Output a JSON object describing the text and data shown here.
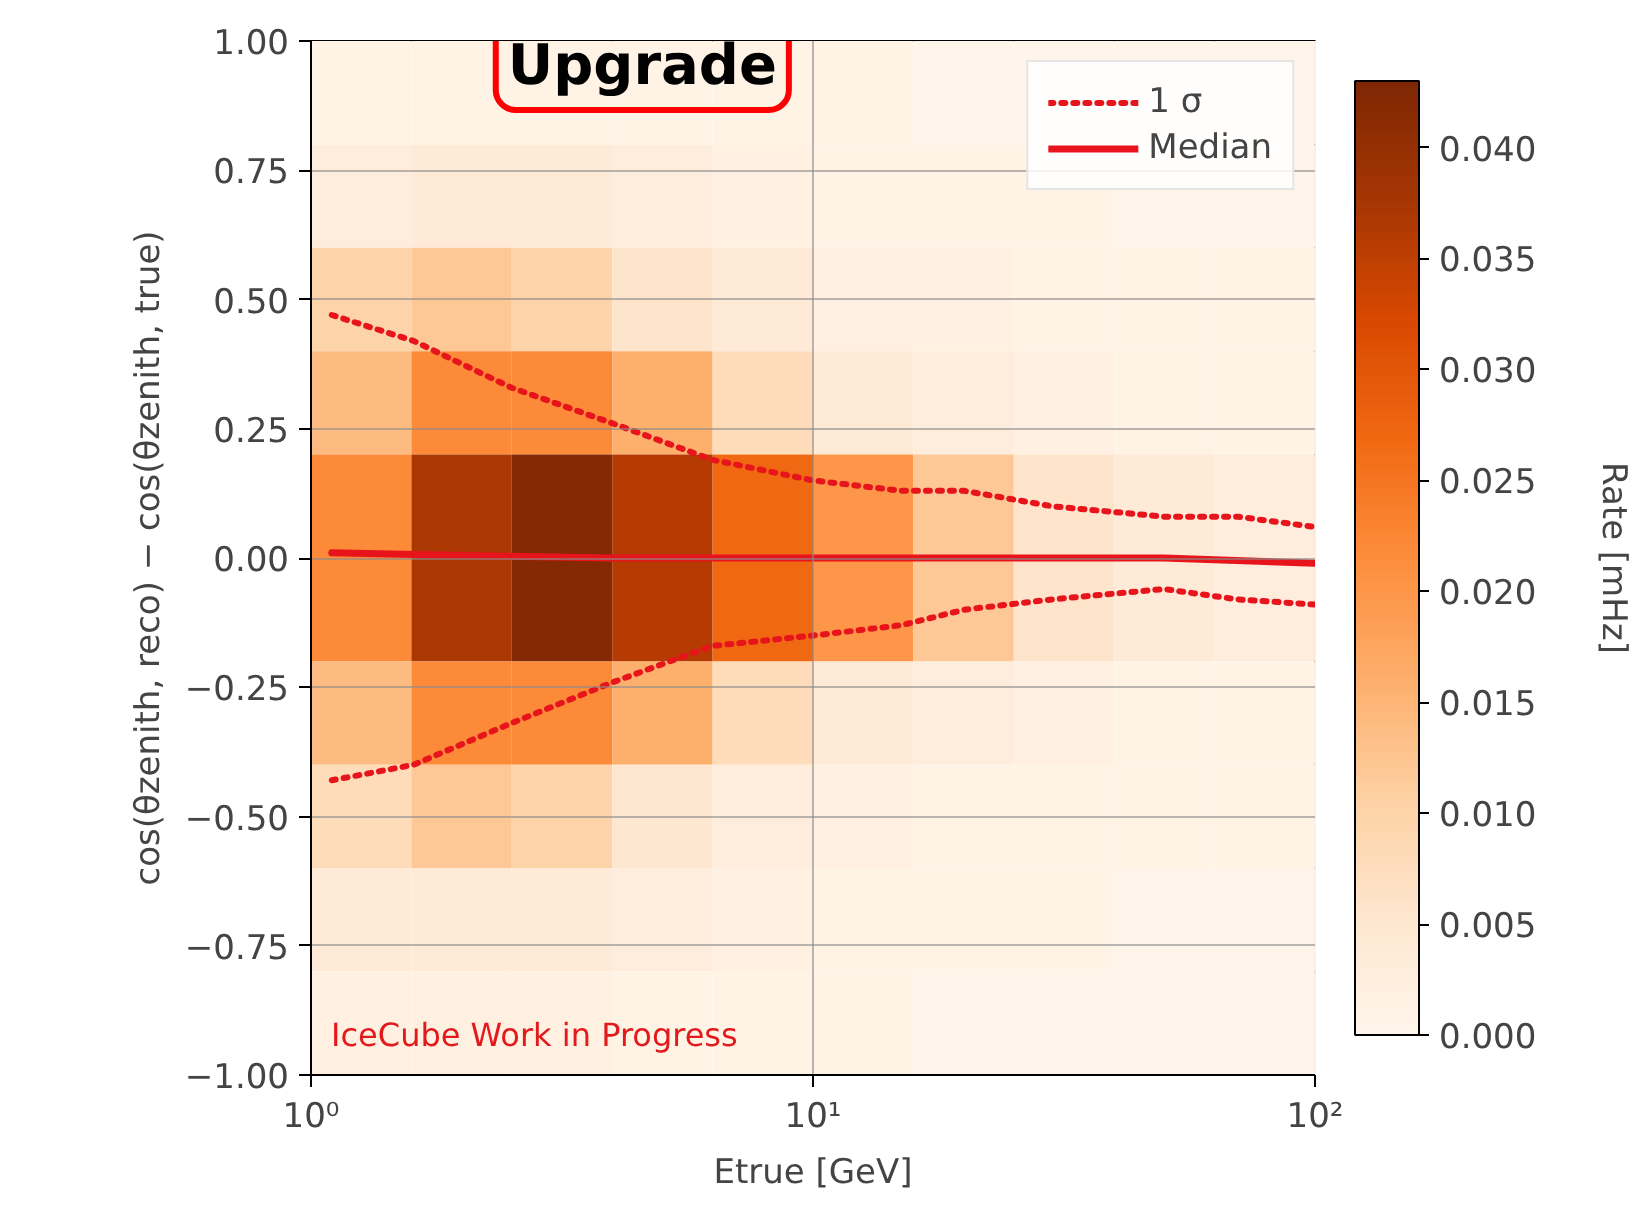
{
  "chart_data": {
    "type": "heatmap",
    "xlabel": "Etrue [GeV]",
    "ylabel": "cos(θzenith, reco) − cos(θzenith, true)",
    "clabel": "Rate [mHz]",
    "annotations": [
      "Upgrade",
      "IceCube Work in Progress"
    ],
    "log": "x",
    "xlim": [
      1,
      100
    ],
    "xticks": [
      {
        "value": 1,
        "label": "10⁰"
      },
      {
        "value": 10,
        "label": "10¹"
      },
      {
        "value": 100,
        "label": "10²"
      }
    ],
    "ylim": [
      -1,
      1
    ],
    "yticks": [
      {
        "value": -1,
        "label": "−1.00"
      },
      {
        "value": -0.75,
        "label": "−0.75"
      },
      {
        "value": -0.5,
        "label": "−0.50"
      },
      {
        "value": -0.25,
        "label": "−0.25"
      },
      {
        "value": 0,
        "label": "0.00"
      },
      {
        "value": 0.25,
        "label": "0.25"
      },
      {
        "value": 0.5,
        "label": "0.50"
      },
      {
        "value": 0.75,
        "label": "0.75"
      },
      {
        "value": 1,
        "label": "1.00"
      }
    ],
    "clim": [
      0,
      0.043
    ],
    "cticks": [
      {
        "value": 0,
        "label": "0.000"
      },
      {
        "value": 0.005,
        "label": "0.005"
      },
      {
        "value": 0.01,
        "label": "0.010"
      },
      {
        "value": 0.015,
        "label": "0.015"
      },
      {
        "value": 0.02,
        "label": "0.020"
      },
      {
        "value": 0.025,
        "label": "0.025"
      },
      {
        "value": 0.03,
        "label": "0.030"
      },
      {
        "value": 0.035,
        "label": "0.035"
      },
      {
        "value": 0.04,
        "label": "0.040"
      }
    ],
    "x": [
      1.259,
      1.995,
      3.162,
      5.012,
      7.943,
      12.59,
      19.95,
      31.62,
      50.12,
      79.43
    ],
    "cells": [
      [
        0.001,
        0.001,
        0.001,
        0.001,
        0.001,
        0.001,
        0.0005,
        0.0005,
        0.0005,
        0.0005
      ],
      [
        0.003,
        0.004,
        0.004,
        0.003,
        0.002,
        0.001,
        0.001,
        0.001,
        0.0005,
        0.0005
      ],
      [
        0.01,
        0.012,
        0.01,
        0.006,
        0.004,
        0.002,
        0.002,
        0.001,
        0.001,
        0.001
      ],
      [
        0.014,
        0.022,
        0.022,
        0.016,
        0.008,
        0.004,
        0.003,
        0.002,
        0.001,
        0.001
      ],
      [
        0.022,
        0.037,
        0.042,
        0.036,
        0.027,
        0.02,
        0.012,
        0.006,
        0.004,
        0.003
      ],
      [
        0.022,
        0.037,
        0.042,
        0.036,
        0.027,
        0.02,
        0.012,
        0.006,
        0.004,
        0.003
      ],
      [
        0.014,
        0.022,
        0.022,
        0.016,
        0.008,
        0.004,
        0.003,
        0.002,
        0.001,
        0.001
      ],
      [
        0.008,
        0.012,
        0.01,
        0.005,
        0.003,
        0.002,
        0.001,
        0.001,
        0.001,
        0.001
      ],
      [
        0.004,
        0.004,
        0.004,
        0.003,
        0.002,
        0.001,
        0.001,
        0.001,
        0.0005,
        0.0005
      ],
      [
        0.002,
        0.002,
        0.002,
        0.001,
        0.001,
        0.001,
        0.0005,
        0.0005,
        0.0005,
        0.0005
      ]
    ],
    "series": [
      {
        "name": "1 σ",
        "type": "line",
        "line_style": "dotted",
        "color": "#e8141c",
        "x": [
          1.1,
          1.6,
          2.5,
          4,
          6.3,
          10,
          15,
          20,
          30,
          50,
          70,
          100
        ],
        "values": [
          0.47,
          0.42,
          0.33,
          0.26,
          0.19,
          0.15,
          0.13,
          0.13,
          0.1,
          0.08,
          0.08,
          0.06
        ]
      },
      {
        "type": "line",
        "line_style": "dotted",
        "color": "#e8141c",
        "x": [
          1.1,
          1.6,
          2.5,
          4,
          6.3,
          10,
          15,
          20,
          30,
          50,
          70,
          100
        ],
        "values": [
          -0.43,
          -0.4,
          -0.32,
          -0.24,
          -0.17,
          -0.15,
          -0.13,
          -0.1,
          -0.08,
          -0.06,
          -0.08,
          -0.09
        ]
      },
      {
        "name": "Median",
        "type": "line",
        "line_style": "solid",
        "color": "#e8141c",
        "x": [
          1.1,
          2,
          4,
          10,
          20,
          50,
          100
        ],
        "values": [
          0.01,
          0.005,
          0.0,
          0.0,
          0.0,
          0.0,
          -0.01
        ]
      }
    ],
    "grid": true,
    "legend": "top right"
  }
}
